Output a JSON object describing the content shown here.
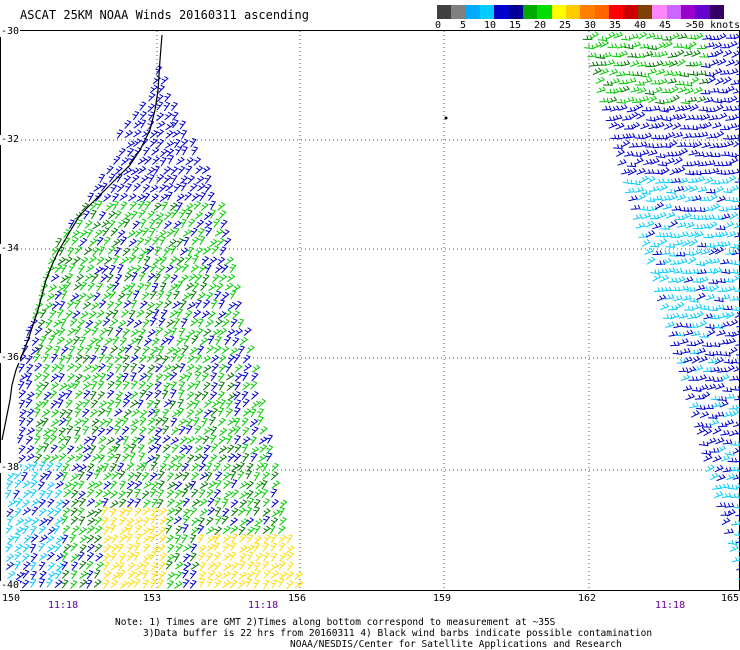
{
  "title": "ASCAT 25KM NOAA Winds 20160311 ascending",
  "legend": {
    "colors": [
      "#404040",
      "#808080",
      "#00aaff",
      "#00ccff",
      "#0000cc",
      "#000099",
      "#00aa00",
      "#00dd00",
      "#ffff00",
      "#ffcc00",
      "#ff8000",
      "#ff6600",
      "#ff0000",
      "#cc0000",
      "#804000",
      "#ff88ff",
      "#cc66ff",
      "#9900cc",
      "#6600cc",
      "#330066"
    ],
    "labels": [
      "0",
      "5",
      "10",
      "15",
      "20",
      "25",
      "30",
      "35",
      "40",
      "45",
      ">50 knots"
    ]
  },
  "lat_labels": [
    "-30",
    "-32",
    "-34",
    "-36",
    "-38",
    "-40"
  ],
  "lon_labels": [
    "150",
    "153",
    "156",
    "159",
    "162",
    "165"
  ],
  "time_labels": [
    "11:18",
    "11:18",
    "11:18"
  ],
  "notes": [
    "Note: 1) Times are GMT 2)Times along bottom correspond to measurement at ~35S",
    "3)Data buffer is 22 hrs from 20160311 4) Black wind barbs indicate possible contamination",
    "NOAA/NESDIS/Center for Satellite Applications and Research"
  ],
  "colors": {
    "blue": "#0000cc",
    "cyan": "#00ccff",
    "green": "#00cc00",
    "darkgreen": "#007700",
    "yellow": "#ffdd00",
    "coast": "#000000",
    "grid": "#555555"
  }
}
